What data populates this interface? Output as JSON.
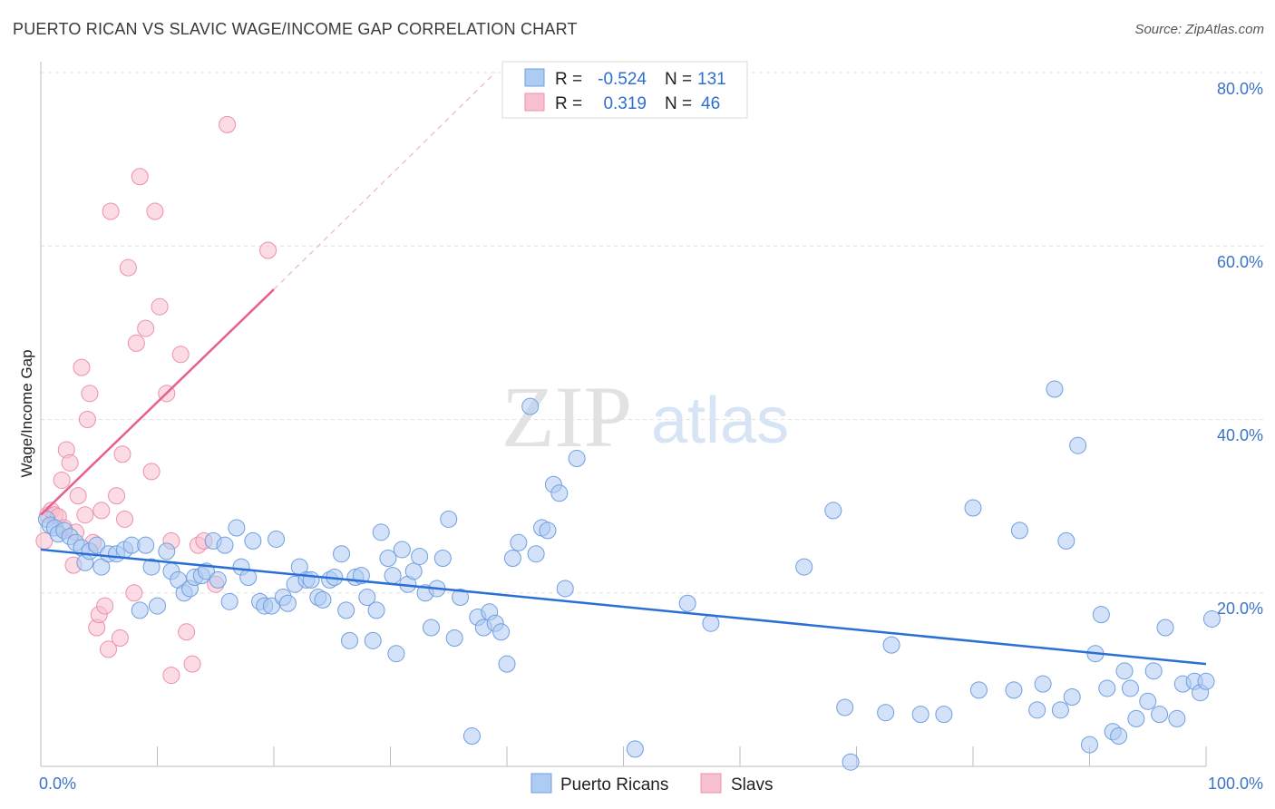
{
  "header": {
    "title": "PUERTO RICAN VS SLAVIC WAGE/INCOME GAP CORRELATION CHART",
    "source": "Source: ZipAtlas.com"
  },
  "watermark": {
    "zip": "ZIP",
    "atlas": "atlas"
  },
  "legend": {
    "rows": [
      {
        "r_label": "R =",
        "r_value": "-0.524",
        "n_label": "N =",
        "n_value": "131"
      },
      {
        "r_label": "R =",
        "r_value": "0.319",
        "n_label": "N =",
        "n_value": "46"
      }
    ]
  },
  "bottom_legend": {
    "series1": "Puerto Ricans",
    "series2": "Slavs"
  },
  "axis": {
    "ylabel": "Wage/Income Gap",
    "xtick_left": "0.0%",
    "xtick_right": "100.0%",
    "yticks": [
      "80.0%",
      "60.0%",
      "40.0%",
      "20.0%"
    ]
  },
  "colors": {
    "blue_fill": "#aecbf2",
    "blue_stroke": "#6f9fe0",
    "blue_line": "#2a6fd6",
    "pink_fill": "#f7c0cf",
    "pink_stroke": "#ee8fab",
    "pink_line": "#e8608a"
  },
  "chart_data": {
    "type": "scatter",
    "title": "PUERTO RICAN VS SLAVIC WAGE/INCOME GAP CORRELATION CHART",
    "xlabel": "",
    "ylabel": "Wage/Income Gap",
    "xlim": [
      0,
      100
    ],
    "ylim": [
      0,
      80
    ],
    "grid": true,
    "legend_placement": "top-center",
    "series": [
      {
        "name": "Puerto Ricans",
        "stats": {
          "R": -0.524,
          "N": 131
        },
        "trend": {
          "x": [
            0,
            100
          ],
          "y": [
            25.0,
            11.8
          ]
        },
        "points": [
          [
            0.5,
            28.5
          ],
          [
            0.8,
            27.8
          ],
          [
            1.2,
            27.5
          ],
          [
            1.5,
            26.8
          ],
          [
            2.0,
            27.2
          ],
          [
            2.5,
            26.5
          ],
          [
            3.0,
            25.8
          ],
          [
            3.5,
            25.2
          ],
          [
            3.8,
            23.5
          ],
          [
            4.2,
            24.8
          ],
          [
            4.8,
            25.5
          ],
          [
            5.2,
            23.0
          ],
          [
            5.8,
            24.5
          ],
          [
            6.5,
            24.5
          ],
          [
            7.2,
            25.0
          ],
          [
            7.8,
            25.5
          ],
          [
            8.5,
            18.0
          ],
          [
            9.0,
            25.5
          ],
          [
            9.5,
            23.0
          ],
          [
            10.0,
            18.5
          ],
          [
            10.8,
            24.8
          ],
          [
            11.2,
            22.5
          ],
          [
            11.8,
            21.5
          ],
          [
            12.3,
            20.0
          ],
          [
            12.8,
            20.5
          ],
          [
            13.2,
            21.8
          ],
          [
            13.8,
            22.0
          ],
          [
            14.2,
            22.5
          ],
          [
            14.8,
            26.0
          ],
          [
            15.2,
            21.5
          ],
          [
            15.8,
            25.5
          ],
          [
            16.2,
            19.0
          ],
          [
            16.8,
            27.5
          ],
          [
            17.2,
            23.0
          ],
          [
            17.8,
            21.8
          ],
          [
            18.2,
            26.0
          ],
          [
            18.8,
            19.0
          ],
          [
            19.2,
            18.5
          ],
          [
            19.8,
            18.5
          ],
          [
            20.2,
            26.2
          ],
          [
            20.8,
            19.5
          ],
          [
            21.2,
            18.8
          ],
          [
            21.8,
            21.0
          ],
          [
            22.2,
            23.0
          ],
          [
            22.8,
            21.5
          ],
          [
            23.2,
            21.5
          ],
          [
            23.8,
            19.5
          ],
          [
            24.2,
            19.2
          ],
          [
            24.8,
            21.5
          ],
          [
            25.2,
            21.8
          ],
          [
            25.8,
            24.5
          ],
          [
            26.2,
            18.0
          ],
          [
            26.5,
            14.5
          ],
          [
            27.0,
            21.8
          ],
          [
            27.5,
            22.0
          ],
          [
            28.0,
            19.5
          ],
          [
            28.5,
            14.5
          ],
          [
            28.8,
            18.0
          ],
          [
            29.2,
            27.0
          ],
          [
            29.8,
            24.0
          ],
          [
            30.2,
            22.0
          ],
          [
            30.5,
            13.0
          ],
          [
            31.0,
            25.0
          ],
          [
            31.5,
            21.0
          ],
          [
            32.0,
            22.5
          ],
          [
            32.5,
            24.2
          ],
          [
            33.0,
            20.0
          ],
          [
            33.5,
            16.0
          ],
          [
            34.0,
            20.5
          ],
          [
            34.5,
            24.0
          ],
          [
            35.0,
            28.5
          ],
          [
            35.5,
            14.8
          ],
          [
            36.0,
            19.5
          ],
          [
            37.0,
            3.5
          ],
          [
            37.5,
            17.2
          ],
          [
            38.0,
            16.0
          ],
          [
            38.5,
            17.8
          ],
          [
            39.0,
            16.5
          ],
          [
            39.5,
            15.5
          ],
          [
            40.0,
            11.8
          ],
          [
            40.5,
            24.0
          ],
          [
            41.0,
            25.8
          ],
          [
            42.0,
            41.5
          ],
          [
            42.5,
            24.5
          ],
          [
            43.0,
            27.5
          ],
          [
            43.5,
            27.2
          ],
          [
            44.0,
            32.5
          ],
          [
            44.5,
            31.5
          ],
          [
            45.0,
            20.5
          ],
          [
            46.0,
            35.5
          ],
          [
            51.0,
            2.0
          ],
          [
            55.5,
            18.8
          ],
          [
            57.5,
            16.5
          ],
          [
            65.5,
            23.0
          ],
          [
            68.0,
            29.5
          ],
          [
            69.0,
            6.8
          ],
          [
            69.5,
            0.5
          ],
          [
            72.5,
            6.2
          ],
          [
            73.0,
            14.0
          ],
          [
            75.5,
            6.0
          ],
          [
            77.5,
            6.0
          ],
          [
            80.0,
            29.8
          ],
          [
            80.5,
            8.8
          ],
          [
            83.5,
            8.8
          ],
          [
            84.0,
            27.2
          ],
          [
            85.5,
            6.5
          ],
          [
            86.0,
            9.5
          ],
          [
            87.0,
            43.5
          ],
          [
            87.5,
            6.5
          ],
          [
            88.0,
            26.0
          ],
          [
            88.5,
            8.0
          ],
          [
            89.0,
            37.0
          ],
          [
            90.0,
            2.5
          ],
          [
            90.5,
            13.0
          ],
          [
            91.0,
            17.5
          ],
          [
            91.5,
            9.0
          ],
          [
            92.0,
            4.0
          ],
          [
            92.5,
            3.5
          ],
          [
            93.0,
            11.0
          ],
          [
            93.5,
            9.0
          ],
          [
            94.0,
            5.5
          ],
          [
            95.0,
            7.5
          ],
          [
            95.5,
            11.0
          ],
          [
            96.0,
            6.0
          ],
          [
            96.5,
            16.0
          ],
          [
            97.5,
            5.5
          ],
          [
            98.0,
            9.5
          ],
          [
            99.0,
            9.8
          ],
          [
            99.5,
            8.5
          ],
          [
            100.0,
            9.8
          ],
          [
            100.5,
            17.0
          ]
        ]
      },
      {
        "name": "Slavs",
        "stats": {
          "R": 0.319,
          "N": 46
        },
        "trend": {
          "x": [
            0,
            20
          ],
          "y": [
            29.0,
            55.0
          ],
          "dashed_extension": {
            "x": [
              20,
              39
            ],
            "y": [
              55.0,
              80.0
            ]
          }
        },
        "points": [
          [
            0.3,
            26.0
          ],
          [
            0.6,
            29.0
          ],
          [
            0.9,
            29.5
          ],
          [
            1.2,
            29.0
          ],
          [
            1.5,
            28.8
          ],
          [
            1.8,
            33.0
          ],
          [
            2.0,
            27.5
          ],
          [
            2.2,
            36.5
          ],
          [
            2.5,
            35.0
          ],
          [
            2.8,
            23.2
          ],
          [
            3.0,
            27.0
          ],
          [
            3.2,
            31.2
          ],
          [
            3.5,
            46.0
          ],
          [
            3.8,
            29.0
          ],
          [
            4.0,
            40.0
          ],
          [
            4.2,
            43.0
          ],
          [
            4.5,
            25.8
          ],
          [
            4.8,
            16.0
          ],
          [
            5.0,
            17.5
          ],
          [
            5.2,
            29.5
          ],
          [
            5.5,
            18.5
          ],
          [
            5.8,
            13.5
          ],
          [
            6.0,
            64.0
          ],
          [
            6.5,
            31.2
          ],
          [
            6.8,
            14.8
          ],
          [
            7.0,
            36.0
          ],
          [
            7.2,
            28.5
          ],
          [
            7.5,
            57.5
          ],
          [
            8.0,
            20.0
          ],
          [
            8.2,
            48.8
          ],
          [
            8.5,
            68.0
          ],
          [
            9.0,
            50.5
          ],
          [
            9.5,
            34.0
          ],
          [
            9.8,
            64.0
          ],
          [
            10.2,
            53.0
          ],
          [
            10.8,
            43.0
          ],
          [
            11.2,
            10.5
          ],
          [
            11.2,
            26.0
          ],
          [
            12.0,
            47.5
          ],
          [
            12.5,
            15.5
          ],
          [
            13.0,
            11.8
          ],
          [
            13.5,
            25.5
          ],
          [
            14.0,
            26.0
          ],
          [
            15.0,
            21.0
          ],
          [
            16.0,
            74.0
          ],
          [
            19.5,
            59.5
          ]
        ]
      }
    ]
  }
}
